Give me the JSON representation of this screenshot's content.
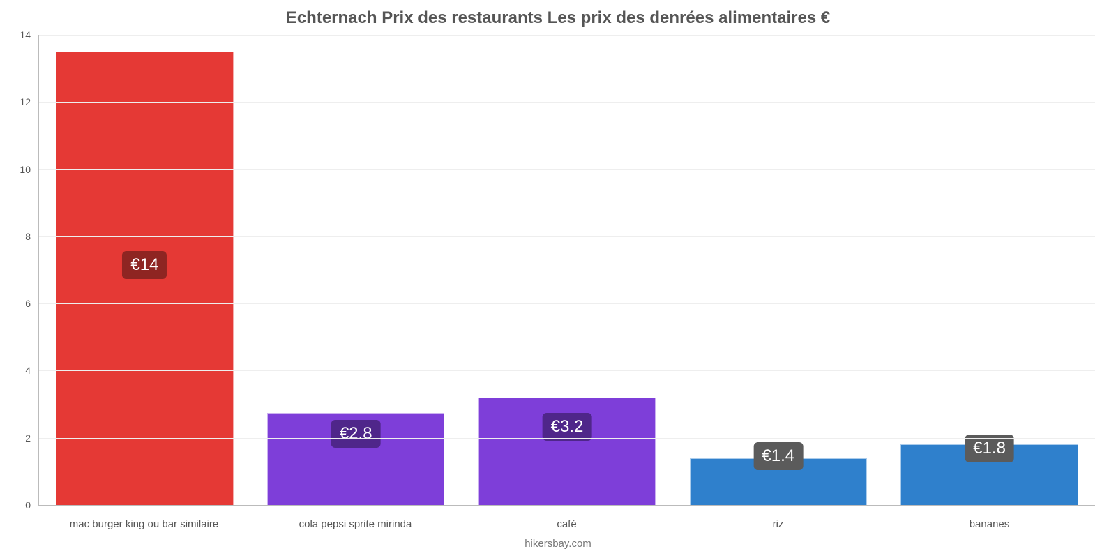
{
  "chart": {
    "type": "bar",
    "title": "Echternach Prix des restaurants Les prix des denrées alimentaires €",
    "title_fontsize": 24,
    "title_color": "#555555",
    "footer": "hikersbay.com",
    "footer_color": "#777777",
    "background_color": "#ffffff",
    "grid_color": "#eeeeee",
    "axis_color": "#bbbbbb",
    "ylim": [
      0,
      14
    ],
    "ytick_step": 2,
    "yticks": [
      0,
      2,
      4,
      6,
      8,
      10,
      12,
      14
    ],
    "x_label_fontsize": 15,
    "y_label_fontsize": 14,
    "badge_fontsize": 24,
    "bar_width": 0.84,
    "categories": [
      "mac burger king ou bar similaire",
      "cola pepsi sprite mirinda",
      "café",
      "riz",
      "bananes"
    ],
    "bars": [
      {
        "value": 13.5,
        "label": "€14",
        "color": "#e53935",
        "badge_bg": "#8e2522",
        "badge_top_pct": 47
      },
      {
        "value": 2.75,
        "label": "€2.8",
        "color": "#7e3ed9",
        "badge_bg": "#4f268a",
        "badge_top_pct": 22
      },
      {
        "value": 3.2,
        "label": "€3.2",
        "color": "#7e3ed9",
        "badge_bg": "#4f268a",
        "badge_top_pct": 27
      },
      {
        "value": 1.4,
        "label": "€1.4",
        "color": "#2f80cc",
        "badge_bg": "#5b5b5b",
        "badge_top_pct": -5
      },
      {
        "value": 1.8,
        "label": "€1.8",
        "color": "#2f80cc",
        "badge_bg": "#5b5b5b",
        "badge_top_pct": 5
      }
    ]
  }
}
